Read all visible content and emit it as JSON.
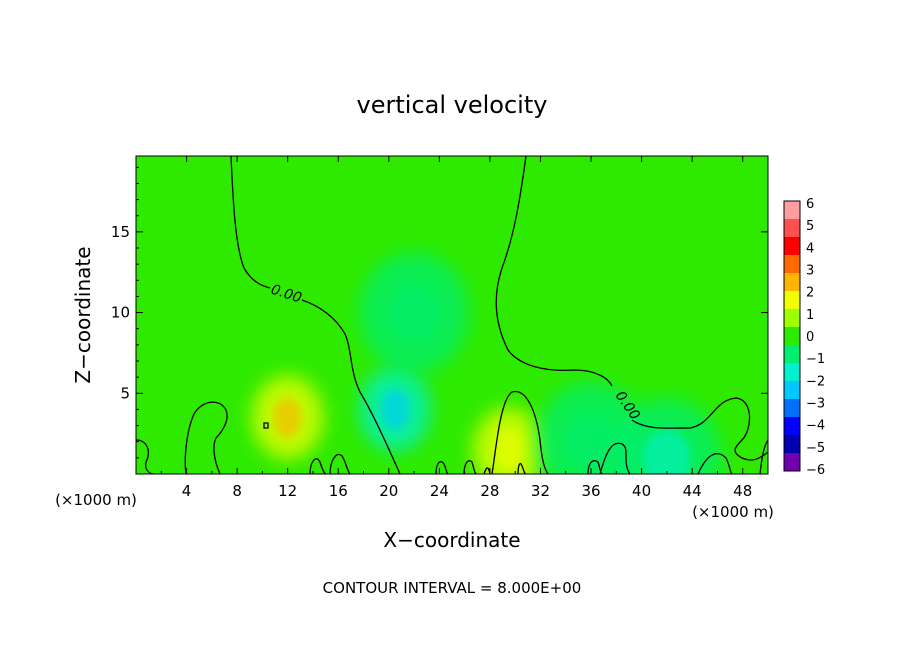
{
  "chart_data": {
    "type": "heatmap",
    "title": "vertical velocity",
    "xlabel": "X−coordinate",
    "ylabel": "Z−coordinate",
    "x_unit_left": "(×1000 m)",
    "x_unit_right": "(×1000 m)",
    "xlim": [
      0,
      50
    ],
    "ylim": [
      0,
      19.7
    ],
    "x_ticks": [
      4,
      8,
      12,
      16,
      20,
      24,
      28,
      32,
      36,
      40,
      44,
      48
    ],
    "y_ticks": [
      5,
      10,
      15
    ],
    "footer": "CONTOUR INTERVAL = 8.000E+00",
    "contour_label": "0.00",
    "colorbar": {
      "range": [
        -6,
        6
      ],
      "labels": [
        "6",
        "5",
        "4",
        "3",
        "2",
        "1",
        "0",
        "−1",
        "−2",
        "−3",
        "−4",
        "−5",
        "−6"
      ],
      "colors": [
        "#ff9e9e",
        "#ff5050",
        "#ff0000",
        "#ff6a00",
        "#ffb400",
        "#f0ff00",
        "#9eff00",
        "#2eea00",
        "#00ee70",
        "#00f0d0",
        "#00c8ff",
        "#0070ff",
        "#0000ff",
        "#0000b0",
        "#7000b0"
      ]
    },
    "background_value": 0,
    "features": [
      {
        "kind": "updraft",
        "x": 12,
        "z": 3.5,
        "value": 1.5
      },
      {
        "kind": "updraft",
        "x": 29.5,
        "z": 1.5,
        "value": 1.2
      },
      {
        "kind": "downdraft",
        "x": 20.5,
        "z": 4.0,
        "value": -1.8
      },
      {
        "kind": "downdraft",
        "x": 22,
        "z": 10,
        "value": -0.6
      },
      {
        "kind": "downdraft",
        "x": 36,
        "z": 2,
        "value": -0.8
      },
      {
        "kind": "downdraft",
        "x": 42,
        "z": 1,
        "value": -1.0
      }
    ]
  }
}
